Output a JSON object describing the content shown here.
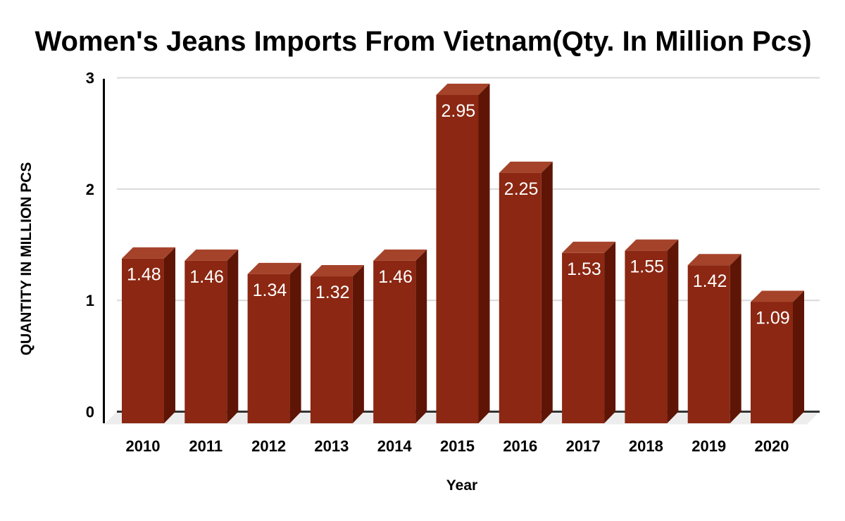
{
  "title": "Women's Jeans Imports From Vietnam(Qty. In Million Pcs)",
  "chart_data": {
    "type": "bar",
    "style": "3d-column",
    "title": "Women's Jeans Imports From Vietnam(Qty. In Million Pcs)",
    "xlabel": "Year",
    "ylabel": "QUANTITY IN MILLION PCS",
    "categories": [
      "2010",
      "2011",
      "2012",
      "2013",
      "2014",
      "2015",
      "2016",
      "2017",
      "2018",
      "2019",
      "2020"
    ],
    "values": [
      1.48,
      1.46,
      1.34,
      1.32,
      1.46,
      2.95,
      2.25,
      1.53,
      1.55,
      1.42,
      1.09
    ],
    "value_labels": [
      "1.48",
      "1.46",
      "1.34",
      "1.32",
      "1.46",
      "2.95",
      "2.25",
      "1.53",
      "1.55",
      "1.42",
      "1.09"
    ],
    "ylim": [
      0,
      3
    ],
    "yticks": [
      0,
      1,
      2,
      3
    ],
    "grid": true,
    "legend": "none",
    "colors": {
      "bar_front": "#8B2712",
      "bar_top": "#A5432A",
      "bar_side": "#5E1505",
      "floor": "#EDEDED",
      "gridline": "#D9D9D9",
      "baseline": "#333333",
      "axis_line": "#000000",
      "bar_label_text": "#FFFFFF",
      "text": "#000000",
      "background": "#FFFFFF"
    }
  }
}
